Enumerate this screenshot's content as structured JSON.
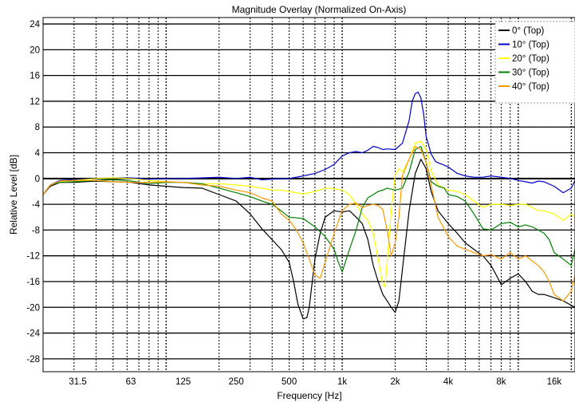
{
  "chart_data": {
    "type": "line",
    "title": "Magnitude Overlay (Normalized On-Axis)",
    "xlabel": "Frequency [Hz]",
    "ylabel": "Relative Level [dB]",
    "x_scale": "log",
    "xlim": [
      20,
      21000
    ],
    "ylim": [
      -30,
      25
    ],
    "x_ticks": [
      31.5,
      63,
      125,
      250,
      500,
      1000,
      2000,
      4000,
      8000,
      16000
    ],
    "x_tick_labels": [
      "31.5",
      "63",
      "125",
      "250",
      "500",
      "1k",
      "2k",
      "4k",
      "8k",
      "16k"
    ],
    "y_ticks": [
      24,
      20,
      16,
      12,
      8,
      4,
      0,
      -4,
      -8,
      -12,
      -16,
      -20,
      -24,
      -28
    ],
    "y_tick_labels": [
      "24",
      "20",
      "16",
      "12",
      "8",
      "4",
      "0",
      "-4",
      "-8",
      "-12",
      "-16",
      "-20",
      "-24",
      "-28"
    ],
    "grid": true,
    "legend_position": "top-right",
    "series": [
      {
        "name": "0° (Top)",
        "color": "#000000",
        "x": [
          20,
          22,
          25,
          30,
          40,
          50,
          63,
          80,
          100,
          125,
          160,
          200,
          250,
          300,
          350,
          400,
          450,
          500,
          530,
          560,
          600,
          630,
          650,
          700,
          750,
          800,
          900,
          1000,
          1100,
          1200,
          1300,
          1400,
          1500,
          1600,
          1700,
          1800,
          1900,
          2000,
          2100,
          2200,
          2400,
          2600,
          2800,
          3000,
          3200,
          3500,
          4000,
          4500,
          5000,
          5600,
          6300,
          7000,
          7500,
          8000,
          9000,
          10000,
          11000,
          12000,
          13000,
          14000,
          16000,
          18000,
          21000
        ],
        "y": [
          -2.5,
          -1.2,
          -0.6,
          -0.6,
          -0.4,
          -0.5,
          -0.6,
          -1.0,
          -1.2,
          -1.4,
          -1.5,
          -2.5,
          -3.5,
          -5.5,
          -7.8,
          -9.5,
          -11.0,
          -13.0,
          -16.0,
          -19.5,
          -21.8,
          -21.6,
          -20.0,
          -12.5,
          -8.5,
          -6.0,
          -5.0,
          -5.2,
          -5.0,
          -6.0,
          -7.0,
          -9.5,
          -13.5,
          -16.0,
          -18.0,
          -19.0,
          -20.0,
          -20.8,
          -19.0,
          -14.0,
          -5.0,
          0.8,
          3.0,
          1.5,
          -2.0,
          -5.0,
          -7.0,
          -8.5,
          -10.0,
          -11.0,
          -12.0,
          -13.5,
          -15.0,
          -16.5,
          -15.5,
          -14.8,
          -16.0,
          -17.5,
          -18.0,
          -18.0,
          -18.5,
          -19.0,
          -20.0
        ]
      },
      {
        "name": "10° (Top)",
        "color": "#0000cc",
        "x": [
          20,
          22,
          25,
          30,
          40,
          50,
          63,
          80,
          100,
          125,
          160,
          200,
          250,
          300,
          350,
          400,
          500,
          600,
          700,
          800,
          900,
          1000,
          1100,
          1200,
          1300,
          1400,
          1500,
          1600,
          1700,
          1800,
          2000,
          2200,
          2400,
          2500,
          2600,
          2700,
          2800,
          2900,
          3000,
          3200,
          3400,
          3700,
          4000,
          4500,
          5000,
          5600,
          6300,
          7000,
          8000,
          9000,
          10000,
          11000,
          12000,
          13000,
          14000,
          16000,
          18000,
          20000,
          21000
        ],
        "y": [
          -2.5,
          -1.0,
          -0.3,
          -0.2,
          0.0,
          0.1,
          0.1,
          -0.1,
          0.0,
          0.0,
          0.1,
          0.2,
          0.0,
          0.2,
          -0.2,
          -0.1,
          0.0,
          0.4,
          0.8,
          1.4,
          2.2,
          3.5,
          4.0,
          4.2,
          4.0,
          4.4,
          5.0,
          4.8,
          4.5,
          4.6,
          4.5,
          5.5,
          9.0,
          12.0,
          13.2,
          13.4,
          12.5,
          10.0,
          6.5,
          3.8,
          2.6,
          2.2,
          1.8,
          0.8,
          0.4,
          0.2,
          0.2,
          0.4,
          0.2,
          0.0,
          -0.3,
          -0.5,
          -0.7,
          -0.4,
          -0.5,
          -1.2,
          -2.2,
          -1.5,
          -0.3
        ]
      },
      {
        "name": "20° (Top)",
        "color": "#ffff00",
        "x": [
          20,
          22,
          25,
          30,
          40,
          50,
          63,
          80,
          100,
          125,
          160,
          200,
          250,
          300,
          350,
          400,
          450,
          500,
          600,
          700,
          800,
          900,
          1000,
          1100,
          1200,
          1300,
          1400,
          1500,
          1600,
          1700,
          1750,
          1800,
          1900,
          2000,
          2100,
          2200,
          2400,
          2600,
          2800,
          3000,
          3200,
          3500,
          4000,
          4500,
          5000,
          5600,
          6300,
          7000,
          8000,
          9000,
          10000,
          11000,
          12000,
          13000,
          14000,
          16000,
          18000,
          20000,
          21000
        ],
        "y": [
          -2.5,
          -1.0,
          -0.5,
          -0.3,
          0.0,
          0.1,
          0.0,
          -0.3,
          -0.5,
          -0.6,
          -0.8,
          -0.8,
          -1.0,
          -1.2,
          -1.5,
          -1.8,
          -1.8,
          -2.0,
          -2.4,
          -2.0,
          -1.5,
          -1.6,
          -1.8,
          -2.5,
          -4.0,
          -5.5,
          -6.5,
          -8.5,
          -12.5,
          -16.5,
          -16.8,
          -13.0,
          -5.0,
          0.5,
          1.5,
          1.0,
          3.0,
          5.5,
          5.8,
          4.5,
          1.2,
          -1.0,
          -1.8,
          -2.0,
          -2.5,
          -3.5,
          -4.5,
          -4.0,
          -4.0,
          -4.2,
          -4.0,
          -4.0,
          -4.5,
          -5.0,
          -5.0,
          -5.5,
          -6.5,
          -5.5,
          -6.0
        ]
      },
      {
        "name": "30° (Top)",
        "color": "#008000",
        "x": [
          20,
          22,
          25,
          30,
          40,
          50,
          63,
          80,
          100,
          125,
          160,
          200,
          250,
          300,
          350,
          400,
          450,
          500,
          600,
          700,
          800,
          900,
          950,
          1000,
          1100,
          1200,
          1300,
          1400,
          1500,
          1600,
          1700,
          1800,
          2000,
          2200,
          2400,
          2600,
          2800,
          3000,
          3200,
          3500,
          3800,
          4000,
          4500,
          5000,
          5600,
          6300,
          7000,
          8000,
          9000,
          10000,
          11000,
          12000,
          13000,
          14000,
          15000,
          16000,
          18000,
          20000,
          21000
        ],
        "y": [
          -2.5,
          -1.0,
          -0.6,
          -0.5,
          -0.3,
          -0.2,
          -0.4,
          -0.8,
          -0.6,
          -0.6,
          -0.8,
          -1.5,
          -2.2,
          -2.8,
          -3.5,
          -4.0,
          -5.0,
          -6.0,
          -6.2,
          -7.5,
          -9.0,
          -11.0,
          -13.0,
          -14.5,
          -11.0,
          -8.0,
          -4.5,
          -3.0,
          -2.5,
          -2.0,
          -1.8,
          -1.5,
          -1.8,
          -1.5,
          1.0,
          4.5,
          5.0,
          2.5,
          -0.5,
          -1.2,
          -1.5,
          -2.5,
          -2.8,
          -3.5,
          -5.5,
          -7.8,
          -8.0,
          -7.0,
          -6.8,
          -7.5,
          -7.2,
          -7.5,
          -8.0,
          -8.5,
          -9.5,
          -11.5,
          -12.5,
          -13.5,
          -11.0
        ]
      },
      {
        "name": "40° (Top)",
        "color": "#ff9900",
        "x": [
          20,
          22,
          25,
          30,
          40,
          50,
          63,
          80,
          100,
          125,
          160,
          200,
          250,
          300,
          350,
          400,
          450,
          500,
          550,
          600,
          650,
          700,
          750,
          800,
          900,
          1000,
          1100,
          1200,
          1300,
          1400,
          1500,
          1600,
          1700,
          1800,
          1900,
          2000,
          2100,
          2200,
          2400,
          2600,
          2800,
          3000,
          3200,
          3500,
          4000,
          4500,
          5000,
          5600,
          6300,
          7000,
          8000,
          9000,
          10000,
          11000,
          12000,
          13000,
          14000,
          15000,
          16000,
          18000,
          20000,
          21000
        ],
        "y": [
          -2.5,
          -1.0,
          -0.4,
          -0.3,
          -0.3,
          -0.5,
          -0.6,
          -0.6,
          -0.5,
          -0.6,
          -1.0,
          -1.2,
          -1.8,
          -2.2,
          -3.0,
          -3.5,
          -5.5,
          -6.5,
          -8.0,
          -10.0,
          -12.5,
          -15.0,
          -15.5,
          -13.0,
          -8.5,
          -5.0,
          -4.0,
          -3.8,
          -4.5,
          -4.2,
          -4.0,
          -4.2,
          -4.8,
          -8.0,
          -12.0,
          -10.0,
          -6.0,
          0.5,
          3.0,
          5.0,
          4.5,
          2.5,
          -1.0,
          -6.0,
          -9.0,
          -10.5,
          -11.0,
          -11.5,
          -12.0,
          -11.8,
          -12.5,
          -11.5,
          -12.5,
          -12.0,
          -12.8,
          -13.5,
          -14.5,
          -16.0,
          -18.0,
          -19.0,
          -17.5,
          -15.0
        ]
      }
    ]
  }
}
